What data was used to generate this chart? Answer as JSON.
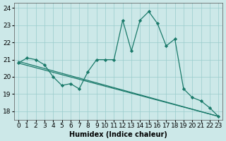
{
  "xlabel": "Humidex (Indice chaleur)",
  "bg_color": "#cce8e8",
  "grid_color": "#99cccc",
  "line_color": "#1a7a6a",
  "xlim": [
    -0.5,
    23.5
  ],
  "ylim": [
    17.5,
    24.3
  ],
  "yticks": [
    18,
    19,
    20,
    21,
    22,
    23,
    24
  ],
  "xticks": [
    0,
    1,
    2,
    3,
    4,
    5,
    6,
    7,
    8,
    9,
    10,
    11,
    12,
    13,
    14,
    15,
    16,
    17,
    18,
    19,
    20,
    21,
    22,
    23
  ],
  "main_x": [
    0,
    1,
    2,
    3,
    4,
    5,
    6,
    7,
    8,
    9,
    10,
    11,
    12,
    13,
    14,
    15,
    16,
    17,
    18,
    19,
    20,
    21,
    22,
    23
  ],
  "main_y": [
    20.8,
    21.1,
    21.0,
    20.7,
    20.0,
    19.5,
    19.6,
    19.3,
    20.3,
    21.0,
    21.0,
    21.0,
    23.3,
    21.5,
    23.3,
    23.8,
    23.1,
    21.8,
    22.2,
    19.3,
    18.8,
    18.6,
    18.2,
    17.7
  ],
  "trend1_x": [
    0,
    23
  ],
  "trend1_y": [
    20.9,
    17.7
  ],
  "trend2_x": [
    0,
    23
  ],
  "trend2_y": [
    20.8,
    17.7
  ],
  "label_fontsize": 7,
  "tick_fontsize": 6.5
}
